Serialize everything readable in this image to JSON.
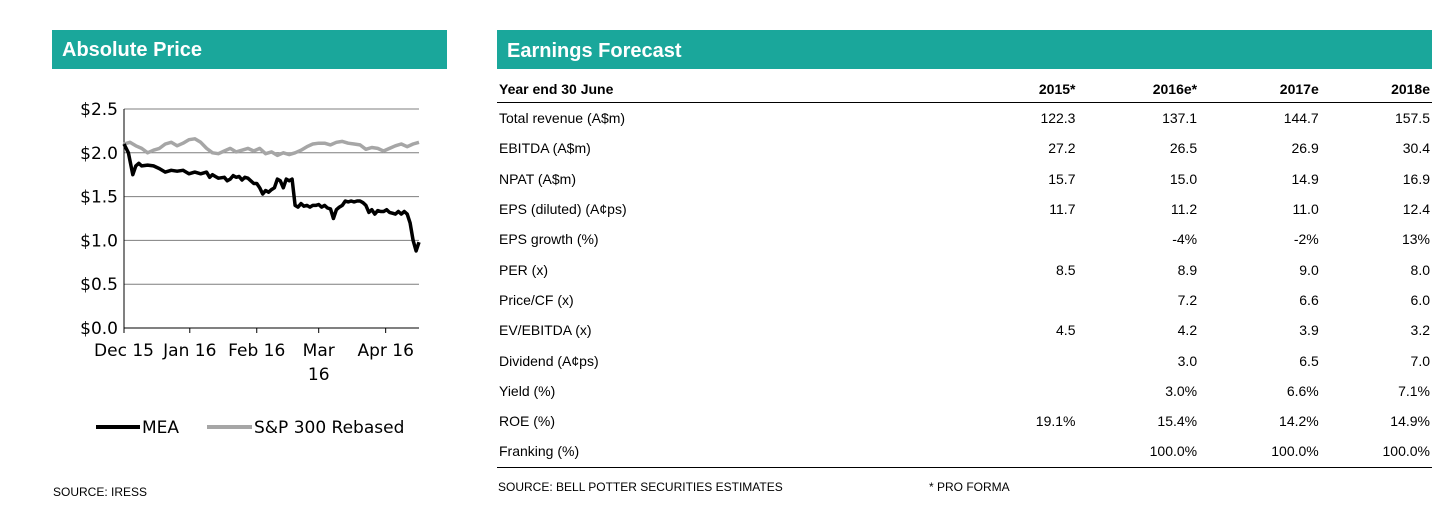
{
  "left_panel": {
    "title": "Absolute Price",
    "source": "SOURCE: IRESS"
  },
  "right_panel": {
    "title": "Earnings Forecast",
    "source": "SOURCE: BELL POTTER SECURITIES ESTIMATES",
    "note": "* PRO FORMA"
  },
  "colors": {
    "header_bg": "#1aa79b",
    "series_mea": "#000000",
    "series_sp300": "#a6a6a6"
  },
  "chart_data": {
    "type": "line",
    "title": "Absolute Price",
    "xlabel": "",
    "ylabel": "",
    "ylim": [
      0,
      2.5
    ],
    "xlim": [
      0,
      100
    ],
    "y_ticks": [
      {
        "value": 2.5,
        "label": "$2.5"
      },
      {
        "value": 2.0,
        "label": "$2.0"
      },
      {
        "value": 1.5,
        "label": "$1.5"
      },
      {
        "value": 1.0,
        "label": "$1.0"
      },
      {
        "value": 0.5,
        "label": "$0.5"
      },
      {
        "value": 0.0,
        "label": "$0.0"
      }
    ],
    "x_ticks": [
      {
        "value": 0,
        "label": "Dec 15"
      },
      {
        "value": 22.3,
        "label": "Jan 16"
      },
      {
        "value": 45.0,
        "label": "Feb 16"
      },
      {
        "value": 66.0,
        "label": "Mar 16"
      },
      {
        "value": 88.7,
        "label": "Apr 16"
      }
    ],
    "x_tick_second_lines": {
      "Mar 16": "16"
    },
    "grid": "horizontal",
    "legend_position": "bottom",
    "series": [
      {
        "name": "MEA",
        "x": [
          0,
          1.5,
          3,
          4,
          5,
          6,
          8,
          10,
          12,
          14,
          16,
          18,
          20,
          22,
          24,
          26,
          28,
          29,
          30,
          31,
          32,
          34,
          35,
          36,
          37,
          38,
          39,
          40,
          41,
          42,
          44,
          45,
          46,
          47,
          48,
          49,
          50,
          51,
          52,
          53,
          54,
          55,
          56,
          57,
          58,
          59,
          60,
          61,
          62,
          63,
          64,
          65,
          66,
          67,
          68,
          69,
          70,
          71,
          72,
          73,
          74,
          75,
          76,
          77,
          78,
          79,
          80,
          81,
          82,
          83,
          84,
          85,
          86,
          87,
          88,
          89,
          90,
          91,
          92,
          93,
          94,
          95,
          96,
          97,
          98,
          99,
          100
        ],
        "values": [
          2.1,
          2.0,
          1.75,
          1.85,
          1.88,
          1.85,
          1.86,
          1.85,
          1.82,
          1.78,
          1.8,
          1.79,
          1.8,
          1.76,
          1.78,
          1.76,
          1.78,
          1.72,
          1.75,
          1.73,
          1.71,
          1.72,
          1.68,
          1.7,
          1.74,
          1.72,
          1.73,
          1.69,
          1.72,
          1.71,
          1.65,
          1.65,
          1.6,
          1.53,
          1.57,
          1.55,
          1.58,
          1.6,
          1.7,
          1.68,
          1.6,
          1.7,
          1.68,
          1.7,
          1.4,
          1.38,
          1.42,
          1.39,
          1.4,
          1.38,
          1.4,
          1.4,
          1.41,
          1.38,
          1.4,
          1.37,
          1.36,
          1.25,
          1.35,
          1.38,
          1.4,
          1.45,
          1.44,
          1.45,
          1.44,
          1.45,
          1.45,
          1.43,
          1.4,
          1.32,
          1.35,
          1.3,
          1.34,
          1.33,
          1.33,
          1.35,
          1.32,
          1.31,
          1.3,
          1.33,
          1.3,
          1.33,
          1.3,
          1.2,
          1.0,
          0.88,
          0.98
        ]
      },
      {
        "name": "S&P 300 Rebased",
        "x": [
          0,
          2,
          4,
          6,
          8,
          10,
          12,
          14,
          16,
          18,
          20,
          22,
          24,
          26,
          28,
          30,
          32,
          34,
          36,
          38,
          40,
          42,
          44,
          46,
          48,
          50,
          52,
          54,
          56,
          58,
          60,
          62,
          64,
          66,
          68,
          70,
          72,
          74,
          76,
          78,
          80,
          82,
          84,
          86,
          88,
          90,
          92,
          94,
          96,
          98,
          100
        ],
        "values": [
          2.1,
          2.12,
          2.08,
          2.05,
          2.0,
          2.03,
          2.05,
          2.1,
          2.12,
          2.08,
          2.11,
          2.15,
          2.16,
          2.12,
          2.05,
          2.0,
          1.99,
          2.02,
          2.05,
          2.01,
          2.03,
          2.05,
          2.02,
          2.05,
          1.99,
          2.01,
          1.97,
          2.0,
          1.98,
          2.0,
          2.03,
          2.07,
          2.1,
          2.11,
          2.11,
          2.09,
          2.12,
          2.13,
          2.11,
          2.1,
          2.09,
          2.04,
          2.06,
          2.05,
          2.02,
          2.05,
          2.08,
          2.1,
          2.07,
          2.1,
          2.12
        ]
      }
    ]
  },
  "table": {
    "columns": [
      "Year end 30 June",
      "2015*",
      "2016e*",
      "2017e",
      "2018e"
    ],
    "rows": [
      [
        "Total revenue (A$m)",
        "122.3",
        "137.1",
        "144.7",
        "157.5"
      ],
      [
        "EBITDA (A$m)",
        "27.2",
        "26.5",
        "26.9",
        "30.4"
      ],
      [
        "NPAT (A$m)",
        "15.7",
        "15.0",
        "14.9",
        "16.9"
      ],
      [
        "EPS (diluted) (A¢ps)",
        "11.7",
        "11.2",
        "11.0",
        "12.4"
      ],
      [
        "EPS growth (%)",
        "",
        "-4%",
        "-2%",
        "13%"
      ],
      [
        "PER (x)",
        "8.5",
        "8.9",
        "9.0",
        "8.0"
      ],
      [
        "Price/CF (x)",
        "",
        "7.2",
        "6.6",
        "6.0"
      ],
      [
        "EV/EBITDA (x)",
        "4.5",
        "4.2",
        "3.9",
        "3.2"
      ],
      [
        "Dividend (A¢ps)",
        "",
        "3.0",
        "6.5",
        "7.0"
      ],
      [
        "Yield (%)",
        "",
        "3.0%",
        "6.6%",
        "7.1%"
      ],
      [
        "ROE (%)",
        "19.1%",
        "15.4%",
        "14.2%",
        "14.9%"
      ],
      [
        "Franking (%)",
        "",
        "100.0%",
        "100.0%",
        "100.0%"
      ]
    ]
  }
}
